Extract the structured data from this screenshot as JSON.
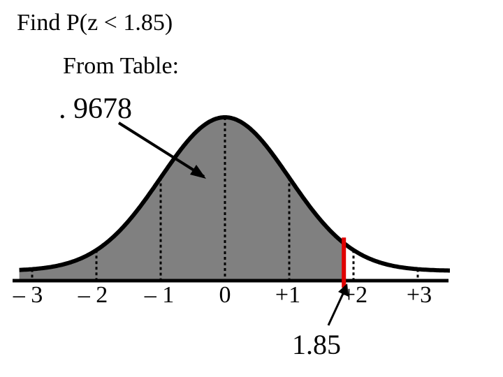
{
  "title": "Find P(z < 1.85)",
  "subtitle": "From Table:",
  "probability_label": ". 9678",
  "z_value_label": "1.85",
  "tick_labels": [
    "– 3",
    "– 2",
    "– 1",
    "0",
    "+1",
    "+2",
    "+3"
  ],
  "colors": {
    "shaded_area": "#808080",
    "curve": "#000000",
    "z_marker": "#e00000"
  },
  "chart_data": {
    "type": "area",
    "distribution": "standard normal",
    "x_ticks": [
      -3,
      -2,
      -1,
      0,
      1,
      2,
      3
    ],
    "shaded_below": 1.85,
    "probability": 0.9678,
    "xlim": [
      -3.2,
      3.5
    ]
  }
}
